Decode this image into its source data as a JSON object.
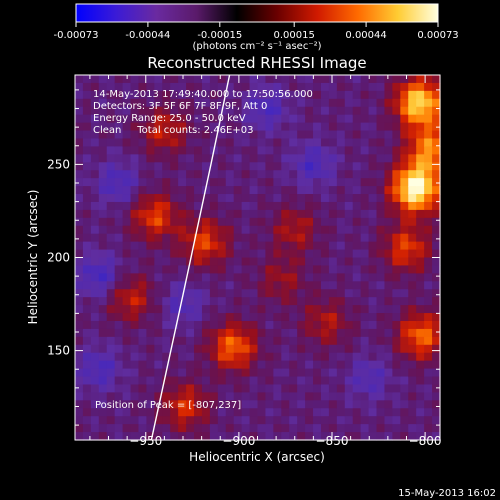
{
  "colorbar": {
    "tick_labels": [
      "-0.00073",
      "-0.00044",
      "-0.00015",
      "0.00015",
      "0.00044",
      "0.00073"
    ],
    "tick_values": [
      -0.00073,
      -0.00044,
      -0.00015,
      0.00015,
      0.00044,
      0.00073
    ],
    "range": [
      -0.00073,
      0.00073
    ],
    "unit_label": "(photons cm⁻² s⁻¹ asec⁻²)",
    "colors": [
      "#0000ff",
      "#3b1bd6",
      "#6a2aa0",
      "#5a1a6a",
      "#000000",
      "#6a0000",
      "#d01a00",
      "#ff6a00",
      "#ffcc33",
      "#ffffe0"
    ]
  },
  "chart_data": {
    "type": "heatmap",
    "title": "Reconstructed RHESSI Image",
    "xlabel": "Heliocentric X (arcsec)",
    "ylabel": "Heliocentric Y (arcsec)",
    "xlim": [
      -988,
      -792
    ],
    "ylim": [
      102,
      298
    ],
    "x_ticks": [
      -950,
      -900,
      -850,
      -800
    ],
    "x_tick_labels": [
      "−950",
      "−900",
      "−850",
      "−800"
    ],
    "y_ticks": [
      150,
      200,
      250
    ],
    "y_tick_labels": [
      "150",
      "200",
      "250"
    ],
    "annotation_lines": [
      "14-May-2013 17:49:40.000 to 17:50:56.000",
      "Detectors: 3F 5F 6F 7F 8F 9F, Att 0",
      "Energy Range: 25.0 - 50.0 keV",
      "Clean     Total counts: 2.46E+03"
    ],
    "peak_label": "Position of Peak = [-807,237]",
    "peak": [
      -807,
      237
    ],
    "limb_curve": [
      [
        -947,
        102
      ],
      [
        -930,
        180
      ],
      [
        -915,
        250
      ],
      [
        -905,
        298
      ]
    ],
    "hot_spots": [
      {
        "x": -805,
        "y": 237,
        "level": 1.0
      },
      {
        "x": -803,
        "y": 283,
        "level": 0.85
      },
      {
        "x": -797,
        "y": 258,
        "level": 0.6
      },
      {
        "x": -802,
        "y": 158,
        "level": 0.55
      },
      {
        "x": -810,
        "y": 205,
        "level": 0.45
      },
      {
        "x": -903,
        "y": 152,
        "level": 0.55
      },
      {
        "x": -918,
        "y": 208,
        "level": 0.45
      },
      {
        "x": -929,
        "y": 120,
        "level": 0.4
      },
      {
        "x": -945,
        "y": 222,
        "level": 0.45
      },
      {
        "x": -940,
        "y": 268,
        "level": 0.35
      },
      {
        "x": -958,
        "y": 178,
        "level": 0.35
      },
      {
        "x": -870,
        "y": 215,
        "level": 0.3
      },
      {
        "x": -853,
        "y": 165,
        "level": 0.3
      },
      {
        "x": -877,
        "y": 188,
        "level": 0.25
      }
    ],
    "cold_spots": [
      {
        "x": -975,
        "y": 190,
        "level": 0.35
      },
      {
        "x": -965,
        "y": 240,
        "level": 0.3
      },
      {
        "x": -975,
        "y": 140,
        "level": 0.3
      },
      {
        "x": -885,
        "y": 280,
        "level": 0.3
      },
      {
        "x": -860,
        "y": 250,
        "level": 0.3
      },
      {
        "x": -830,
        "y": 135,
        "level": 0.25
      },
      {
        "x": -930,
        "y": 175,
        "level": 0.25
      }
    ]
  },
  "footer_date": "15-May-2013 16:02"
}
